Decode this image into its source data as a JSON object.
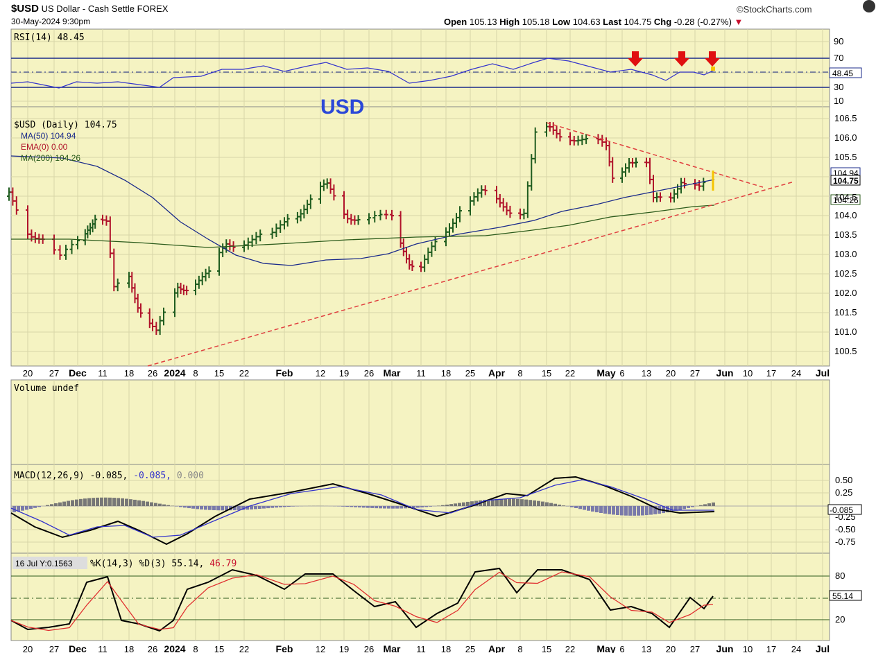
{
  "header": {
    "symbol": "$USD",
    "name": "US Dollar - Cash Settle",
    "exchange": "FOREX",
    "datetime": "30-May-2024 9:30pm",
    "brand": "©StockCharts.com",
    "open_label": "Open",
    "open": "105.13",
    "high_label": "High",
    "high": "105.18",
    "low_label": "Low",
    "low": "104.63",
    "last_label": "Last",
    "last": "104.75",
    "chg_label": "Chg",
    "chg": "-0.28 (-0.27%)",
    "chg_arrow": "▼"
  },
  "rsi": {
    "label": "RSI(14) 48.45",
    "value_tag": "48.45",
    "ticks": [
      "90",
      "70",
      "50",
      "30",
      "10"
    ]
  },
  "annotation": "USD",
  "price_legend": {
    "main": "$USD (Daily) 104.75",
    "ma50": "MA(50) 104.94",
    "ema0": "EMA(0) 0.00",
    "ma200": "MA(200) 104.26"
  },
  "price_tags": {
    "ma50": "104.94",
    "last": "104.75",
    "ma200": "104.26",
    "extra": "104.5"
  },
  "x_labels": [
    "20",
    "27",
    "Dec",
    "11",
    "18",
    "26",
    "2024",
    "8",
    "15",
    "22",
    "Feb",
    "12",
    "19",
    "26",
    "Mar",
    "11",
    "18",
    "25",
    "Apr",
    "8",
    "15",
    "22",
    "May",
    "6",
    "13",
    "20",
    "27",
    "Jun",
    "10",
    "17",
    "24",
    "Jul"
  ],
  "volume_label": "Volume undef",
  "macd": {
    "label_prefix": "MACD(12,26,9) -0.085,",
    "label_signal": " -0.085,",
    "label_hist": " 0.000",
    "value_tag": "-0.085",
    "ticks": [
      "0.50",
      "0.25",
      "-0.25",
      "-0.50",
      "-0.75"
    ]
  },
  "stoch": {
    "crosshair": "16 Jul Y:0.1563",
    "label_prefix": "%K(14,3) %D(3) 55.14,",
    "label_d": " 46.79",
    "value_tag": "55.14",
    "ticks": [
      "80",
      "20"
    ]
  },
  "colors": {
    "panel_bg": "#f5f3c2",
    "ma50": "#1a2a8a",
    "ma200": "#2a5a1a",
    "up": "#1f5c1f",
    "down": "#b0122a",
    "rsi_line": "#3333cc",
    "trend": "#e04040"
  },
  "chart_data": {
    "type": "ohlc",
    "title": "$USD US Dollar - Cash Settle FOREX",
    "price_axis": [
      100.5,
      106.5
    ],
    "close_series": [
      {
        "date": "2023-11-15",
        "close": 104.5
      },
      {
        "date": "2023-11-20",
        "close": 103.7
      },
      {
        "date": "2023-11-24",
        "close": 103.4
      },
      {
        "date": "2023-11-28",
        "close": 102.8
      },
      {
        "date": "2023-12-01",
        "close": 103.3
      },
      {
        "date": "2023-12-05",
        "close": 103.8
      },
      {
        "date": "2023-12-08",
        "close": 104.0
      },
      {
        "date": "2023-12-12",
        "close": 103.7
      },
      {
        "date": "2023-12-14",
        "close": 102.0
      },
      {
        "date": "2023-12-18",
        "close": 102.5
      },
      {
        "date": "2023-12-21",
        "close": 101.8
      },
      {
        "date": "2023-12-27",
        "close": 100.9
      },
      {
        "date": "2024-01-02",
        "close": 102.2
      },
      {
        "date": "2024-01-08",
        "close": 102.3
      },
      {
        "date": "2024-01-12",
        "close": 102.4
      },
      {
        "date": "2024-01-17",
        "close": 103.3
      },
      {
        "date": "2024-01-23",
        "close": 103.4
      },
      {
        "date": "2024-01-29",
        "close": 103.4
      },
      {
        "date": "2024-02-02",
        "close": 104.0
      },
      {
        "date": "2024-02-06",
        "close": 104.2
      },
      {
        "date": "2024-02-14",
        "close": 104.7
      },
      {
        "date": "2024-02-20",
        "close": 104.1
      },
      {
        "date": "2024-02-26",
        "close": 103.8
      },
      {
        "date": "2024-03-01",
        "close": 103.9
      },
      {
        "date": "2024-03-07",
        "close": 102.9
      },
      {
        "date": "2024-03-11",
        "close": 102.6
      },
      {
        "date": "2024-03-18",
        "close": 103.6
      },
      {
        "date": "2024-03-22",
        "close": 104.3
      },
      {
        "date": "2024-03-28",
        "close": 104.5
      },
      {
        "date": "2024-04-03",
        "close": 104.3
      },
      {
        "date": "2024-04-09",
        "close": 104.1
      },
      {
        "date": "2024-04-12",
        "close": 106.0
      },
      {
        "date": "2024-04-16",
        "close": 106.2
      },
      {
        "date": "2024-04-22",
        "close": 106.1
      },
      {
        "date": "2024-04-26",
        "close": 105.9
      },
      {
        "date": "2024-05-01",
        "close": 105.7
      },
      {
        "date": "2024-05-03",
        "close": 105.0
      },
      {
        "date": "2024-05-08",
        "close": 105.5
      },
      {
        "date": "2024-05-13",
        "close": 105.2
      },
      {
        "date": "2024-05-15",
        "close": 104.3
      },
      {
        "date": "2024-05-20",
        "close": 104.6
      },
      {
        "date": "2024-05-23",
        "close": 105.0
      },
      {
        "date": "2024-05-28",
        "close": 104.6
      },
      {
        "date": "2024-05-30",
        "close": 104.75
      }
    ],
    "ma50": {
      "name": "MA(50)",
      "last": 104.94
    },
    "ma200": {
      "name": "MA(200)",
      "last": 104.26
    },
    "rsi14": {
      "last": 48.45,
      "levels": [
        70,
        30
      ]
    },
    "macd": {
      "macd": -0.085,
      "signal": -0.085,
      "hist": 0.0
    },
    "stochastic": {
      "k": 55.14,
      "d": 46.79,
      "levels": [
        80,
        20
      ]
    }
  }
}
